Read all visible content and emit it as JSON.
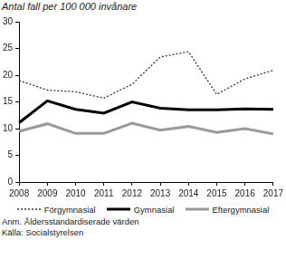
{
  "chart_data": {
    "type": "line",
    "y_label": "Antal fall per 100 000 invånare",
    "notes": [
      "Anm. Åldersstandardiserade värden",
      "Källa: Socialstyrelsen"
    ],
    "categories": [
      "2008",
      "2009",
      "2010",
      "2011",
      "2012",
      "2013",
      "2014",
      "2015",
      "2016",
      "2017"
    ],
    "series": [
      {
        "name": "Förgymnasial",
        "color": "#333333",
        "line_style": "dotted",
        "values": [
          19.0,
          17.2,
          16.9,
          15.7,
          18.3,
          23.4,
          24.4,
          16.4,
          19.3,
          20.9
        ]
      },
      {
        "name": "Gymnasial",
        "color": "#000000",
        "line_style": "solid",
        "values": [
          11.1,
          15.2,
          13.6,
          12.9,
          15.0,
          13.8,
          13.5,
          13.5,
          13.7,
          13.6
        ]
      },
      {
        "name": "Eftergymnasial",
        "color": "#999999",
        "line_style": "solid",
        "values": [
          9.5,
          10.9,
          9.1,
          9.1,
          11.0,
          9.7,
          10.4,
          9.3,
          10.0,
          9.0
        ]
      }
    ],
    "ylim": [
      0,
      30
    ],
    "yticks": [
      0,
      5,
      10,
      15,
      20,
      25,
      30
    ],
    "grid": false,
    "legend": "bottom"
  }
}
